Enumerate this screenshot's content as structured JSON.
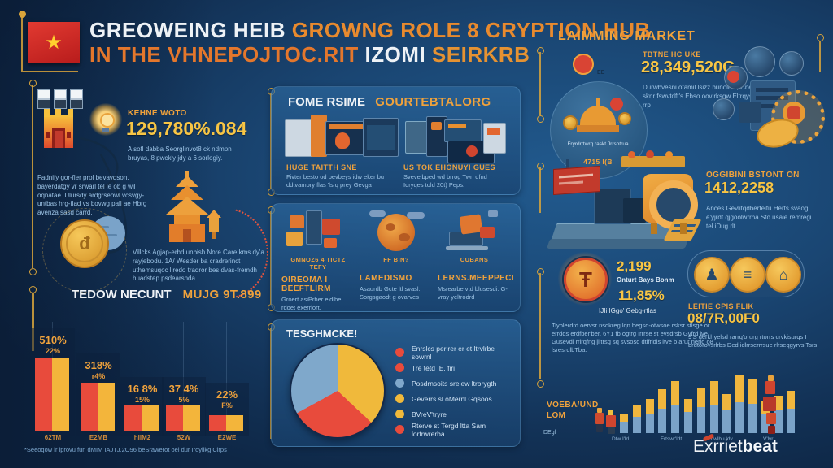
{
  "meta": {
    "accent_orange": "#f0a23c",
    "accent_yellow": "#f7c545",
    "accent_red": "#e84b3c",
    "panel_blue": "#215a8e",
    "text_blue": "#9dc4e6"
  },
  "header": {
    "title_line1_white": "GREOWEING HEIB",
    "title_line1_orange": "GROWNG ROLE 8 CRYPTION HUB",
    "title_line2_orange": "IN THE VHNEPOJTOC.RIT",
    "title_line2_white": "IZOMI",
    "title_line2_orange2": "SEIRKRB"
  },
  "left": {
    "stat_label": "KEHNE WOTO",
    "stat_value": "129,780%.084",
    "stat_desc": "A sofl dabba Seorglinvot8 ck ndmpn bruyas, 8 pwckly jdy a 6 sorlogiy.",
    "para1": "Fadnify gor-fler prol bevavdson, bayerdatgy vr srwarl tel le ob g wil oqnatae. Ulursdy ardgrseowl vcsvgy-untbas hrg-flad vs bovwg pall ae Hbrg avenza sasd carrd.",
    "para2": "Villcks Agjap-erbd unbish Nore Care kms dy'a rayjebodu. 1A/ Wesder ba cradrerinct uthemsuqoc liredo traqror bes dvas-fremdh huadstep psdearsnda.",
    "section_white": "TEDOW NECUNT",
    "section_orange": "MUJG 9T.899",
    "footnote": "*Seeoqow ir iprovu fun dMIM IAJTJ.2O96 beSrawerot oel dur Iroylikg Clrps"
  },
  "middle": {
    "panel1": {
      "heading_white": "FOME RSIME",
      "heading_orange": "GOURTEBTALORG",
      "left_label": "HUGE TAITTH SNE",
      "left_text": "Fivter besto od bevbeys idw eker bu ddtvamory flas 'ls q prey Gevga",
      "right_label": "US TOK EHONUYI GUES",
      "right_text": "Svevelbped wd brrog Twn dfnd Idryqes told 20t) Peps."
    },
    "panel2": {
      "items": [
        {
          "small": "GMNOZ6 4 TICTZ TEFY",
          "title": "OIREOMA I BEEFTLIRM",
          "text": "Groert asiPrber eidlbe rdoet exerriort."
        },
        {
          "small": "FF BIN?",
          "title": "LAMEDISMO",
          "text": "Asaurdb Gcte ltl svasl. Sorgsgaodt g ovarves"
        },
        {
          "small": "CUBANS",
          "title": "LERNS.MEEPPECI",
          "text": "Msrearbe vtd blusesdi. G-vray yeltrodrd"
        }
      ]
    },
    "panel3": {
      "heading": "TESGHMCKE!"
    }
  },
  "right": {
    "heading": "LAIMMING MARKET",
    "s1_label": "TBTNE HC UKE",
    "s1_value": "28,349,520G",
    "s1_text": "Durwbvesni otamil lsizz bunoirks, Cnepuw sknr fswvtdft's Ebso oovlrksgw Eltrqysrd | rrp",
    "dome_badge": "EE",
    "dome_caption": "Fryrdrrtwrq raskt Jrrsotrua",
    "dome_value": "4715 I(B",
    "s2_label": "OGGIBINI BSTONT ON",
    "s2_value": "1412,2258",
    "s2_text": "Ances Gevlitqdberfeitu Herts svaog e'yjrdt qjgoolwrrha Sto usaie remregi tel iDug rlt.",
    "s3_value1": "2,199",
    "s3_label1": "Onturt Bays Bonm",
    "s3_value2": "11,85%",
    "s3_label2": "IJIi IGgo' Gebg-rtlas",
    "s3_text": "Tiyblerdrd oervsr nsdkreg lqn begsd-otwsoe rsksr stlsge or errdqs erdfber'ber. 6Y1 fb ogtrg Irrrse st evsdrsb Gyfrd lve Gusevdi rrlrqfng jlltrsg sq svsosd dtlfrldls ltve b arur nerld o8 lsresrdlbTba.",
    "s4_label": "LEITIE CPIS FLIK",
    "s4_value": "08/7R,00F0",
    "s4_text": "9'S derkhyelsd rarrq'orurg rtorrs crvkisurqs I brdtorovsrlrbs Ded idlrrserrrsue rlrseqgyrvs Tsrs",
    "vol_label1": "VOEBA/UND",
    "vol_label2": "LOM",
    "vol_small": "DEgl",
    "logo_a": "Exrriet",
    "logo_b": "beat"
  },
  "chart_data": [
    {
      "id": "adoption_bars",
      "type": "bar",
      "title": "TEDOW NECUNT MUJG 9T.899",
      "categories": [
        "62TM",
        "E2MB",
        "hIIM2",
        "52W",
        "E2WE"
      ],
      "series": [
        {
          "name": "red",
          "color": "#e84b3c",
          "values": [
            89,
            59,
            31,
            31,
            19
          ]
        },
        {
          "name": "yellow",
          "color": "#f3b53b",
          "values": [
            89,
            59,
            31,
            31,
            19
          ]
        }
      ],
      "value_labels_primary": [
        "510%",
        "318%",
        "16 8%",
        "37 4%",
        "22%"
      ],
      "value_labels_secondary": [
        "22%",
        "r4%",
        "15%",
        "5%",
        "F%"
      ],
      "ylim": [
        0,
        100
      ],
      "grid": true,
      "legend_position": "none"
    },
    {
      "id": "tesghmcke_pie",
      "type": "pie",
      "title": "TESGHMCKE!",
      "slices": [
        {
          "label": "yellow-share",
          "value": 37,
          "color": "#f0b93b"
        },
        {
          "label": "red-share",
          "value": 30,
          "color": "#e84b3c"
        },
        {
          "label": "blue-share",
          "value": 33,
          "color": "#7fa8cb"
        }
      ],
      "legend": [
        {
          "color": "#e84b3c",
          "label": "Enrslcs perlrer er et ltrvlrbe sowrnl"
        },
        {
          "color": "#e84b3c",
          "label": "Tre tetd IE, firi"
        },
        {
          "color": "#7fa8cb",
          "label": "Posdrnsoits srelew ltrorygth"
        },
        {
          "color": "#f0b93b",
          "label": "Geverrs sl oMernl Gqsoos"
        },
        {
          "color": "#f0b93b",
          "label": "BVreV'tryre"
        },
        {
          "color": "#e84b3c",
          "label": "Rterve st Tergd ltta Sam lortrwrerba"
        }
      ],
      "legend_position": "right"
    },
    {
      "id": "volume_bars",
      "type": "bar",
      "stacked": true,
      "title": "VOEBA/UND LOM",
      "x_labels": [
        "Dtw I'ld",
        "Frtswr'ldt",
        "ltwlbu ldv",
        "V'lvr"
      ],
      "series": [
        {
          "name": "base",
          "color": "#7ba3c8",
          "values": [
            14,
            20,
            24,
            30,
            34,
            26,
            32,
            34,
            28,
            38,
            36,
            24,
            28,
            30
          ]
        },
        {
          "name": "top",
          "color": "#f0b63e",
          "values": [
            10,
            14,
            18,
            24,
            30,
            16,
            24,
            30,
            20,
            34,
            30,
            16,
            18,
            22
          ]
        }
      ],
      "grid": false,
      "legend_position": "none"
    }
  ]
}
